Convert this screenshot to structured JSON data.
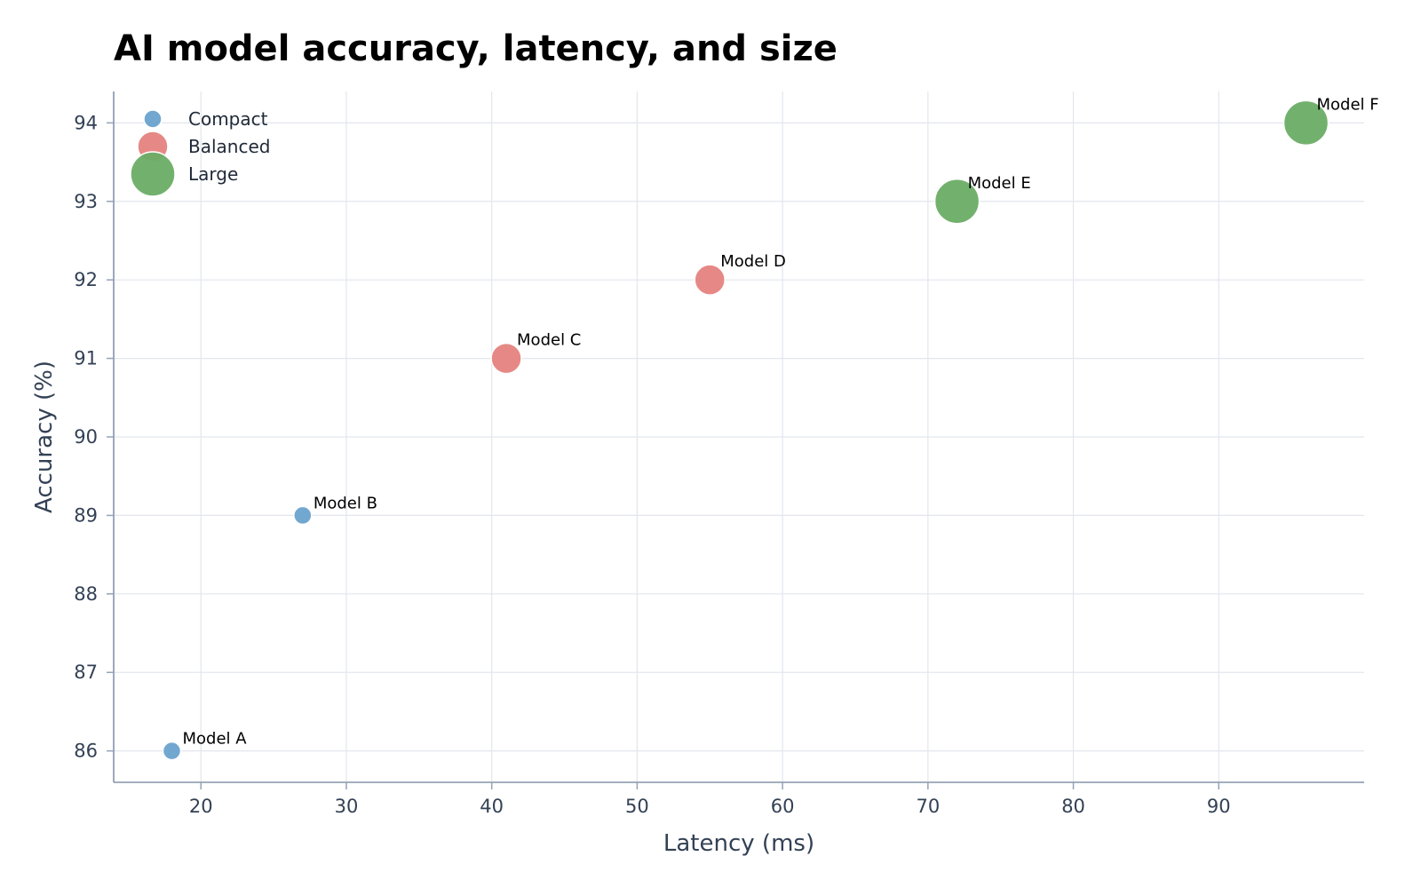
{
  "chart_data": {
    "type": "scatter",
    "title": "AI model accuracy, latency, and size",
    "xlabel": "Latency (ms)",
    "ylabel": "Accuracy (%)",
    "xlim": [
      14,
      100
    ],
    "ylim": [
      85.6,
      94.4
    ],
    "xticks": [
      20,
      30,
      40,
      50,
      60,
      70,
      80,
      90
    ],
    "yticks": [
      86,
      87,
      88,
      89,
      90,
      91,
      92,
      93,
      94
    ],
    "grid": true,
    "legend_position": "top-left",
    "series": [
      {
        "name": "Compact",
        "color": "#6aa2cd",
        "points": [
          {
            "label": "Model A",
            "x": 18,
            "y": 86
          },
          {
            "label": "Model B",
            "x": 27,
            "y": 89
          }
        ]
      },
      {
        "name": "Balanced",
        "color": "#e5837f",
        "points": [
          {
            "label": "Model C",
            "x": 41,
            "y": 91
          },
          {
            "label": "Model D",
            "x": 55,
            "y": 92
          }
        ]
      },
      {
        "name": "Large",
        "color": "#6aad65",
        "points": [
          {
            "label": "Model E",
            "x": 72,
            "y": 93
          },
          {
            "label": "Model F",
            "x": 96,
            "y": 94
          }
        ]
      }
    ]
  }
}
